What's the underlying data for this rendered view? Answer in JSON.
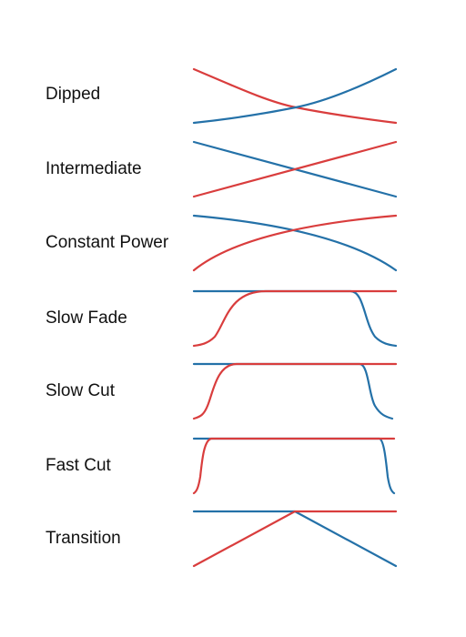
{
  "colors": {
    "fade_in": "#d93d3d",
    "fade_out": "#2471a8"
  },
  "curves": [
    {
      "label": "Dipped",
      "shape": "dipped"
    },
    {
      "label": "Intermediate",
      "shape": "intermediate"
    },
    {
      "label": "Constant Power",
      "shape": "constant-power"
    },
    {
      "label": "Slow Fade",
      "shape": "slow-fade"
    },
    {
      "label": "Slow Cut",
      "shape": "slow-cut"
    },
    {
      "label": "Fast Cut",
      "shape": "fast-cut"
    },
    {
      "label": "Transition",
      "shape": "transition"
    }
  ]
}
